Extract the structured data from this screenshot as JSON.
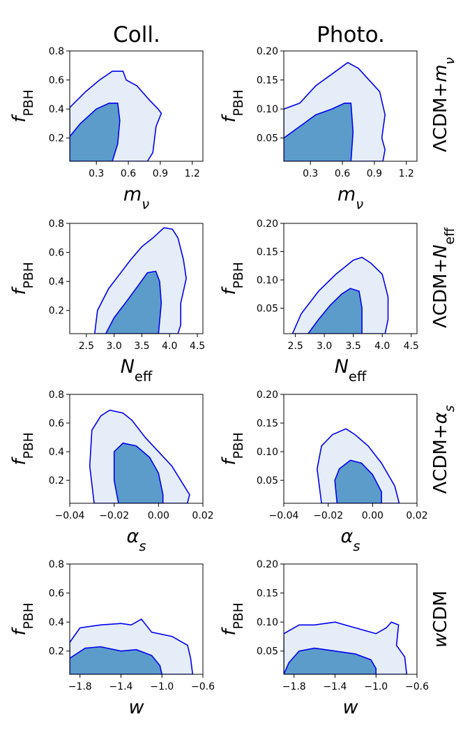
{
  "figure": {
    "column_titles": [
      "Coll.",
      "Photo."
    ],
    "row_titles": [
      "ΛCDM+mν",
      "ΛCDM+Neff",
      "ΛCDM+αs",
      "wCDM"
    ],
    "ylabel": "fPBH",
    "contour_colors": {
      "inner_68": "#5b9ccb",
      "outer_95": "#e5edf8",
      "line": "#0000ee"
    }
  },
  "chart_data": [
    {
      "type": "contour",
      "id": "coll-mnu",
      "column": "Coll.",
      "row": "ΛCDM+mν",
      "xlabel": "mν",
      "ylabel": "fPBH",
      "xlim": [
        0.05,
        1.3
      ],
      "ylim": [
        0.04,
        0.8
      ],
      "xticks": [
        0.3,
        0.6,
        0.9,
        1.2
      ],
      "xtick_labels": [
        "0.3",
        "0.6",
        "0.9",
        "1.2"
      ],
      "yticks": [
        0.2,
        0.4,
        0.6,
        0.8
      ],
      "ytick_labels": [
        "0.2",
        "0.4",
        "0.6",
        "0.8"
      ],
      "contour_95": [
        [
          0.05,
          0.04
        ],
        [
          0.05,
          0.41
        ],
        [
          0.2,
          0.52
        ],
        [
          0.33,
          0.6
        ],
        [
          0.45,
          0.66
        ],
        [
          0.55,
          0.66
        ],
        [
          0.58,
          0.6
        ],
        [
          0.68,
          0.56
        ],
        [
          0.8,
          0.46
        ],
        [
          0.88,
          0.4
        ],
        [
          0.91,
          0.37
        ],
        [
          0.86,
          0.28
        ],
        [
          0.83,
          0.1
        ],
        [
          0.78,
          0.04
        ]
      ],
      "contour_68": [
        [
          0.05,
          0.04
        ],
        [
          0.05,
          0.21
        ],
        [
          0.15,
          0.3
        ],
        [
          0.3,
          0.4
        ],
        [
          0.42,
          0.44
        ],
        [
          0.5,
          0.44
        ],
        [
          0.52,
          0.32
        ],
        [
          0.5,
          0.16
        ],
        [
          0.45,
          0.04
        ]
      ]
    },
    {
      "type": "contour",
      "id": "photo-mnu",
      "column": "Photo.",
      "row": "ΛCDM+mν",
      "xlabel": "mν",
      "ylabel": "fPBH",
      "xlim": [
        0.05,
        1.3
      ],
      "ylim": [
        0.01,
        0.2
      ],
      "xticks": [
        0.3,
        0.6,
        0.9,
        1.2
      ],
      "xtick_labels": [
        "0.3",
        "0.6",
        "0.9",
        "1.2"
      ],
      "yticks": [
        0.05,
        0.1,
        0.15,
        0.2
      ],
      "ytick_labels": [
        "0.05",
        "0.10",
        "0.15",
        "0.20"
      ],
      "contour_95": [
        [
          0.05,
          0.01
        ],
        [
          0.05,
          0.1
        ],
        [
          0.2,
          0.11
        ],
        [
          0.35,
          0.14
        ],
        [
          0.5,
          0.16
        ],
        [
          0.65,
          0.18
        ],
        [
          0.75,
          0.17
        ],
        [
          0.85,
          0.15
        ],
        [
          0.95,
          0.13
        ],
        [
          1.0,
          0.09
        ],
        [
          0.97,
          0.05
        ],
        [
          1.0,
          0.03
        ],
        [
          0.98,
          0.01
        ]
      ],
      "contour_68": [
        [
          0.05,
          0.01
        ],
        [
          0.05,
          0.05
        ],
        [
          0.2,
          0.07
        ],
        [
          0.35,
          0.09
        ],
        [
          0.5,
          0.1
        ],
        [
          0.62,
          0.11
        ],
        [
          0.68,
          0.11
        ],
        [
          0.7,
          0.06
        ],
        [
          0.68,
          0.01
        ]
      ]
    },
    {
      "type": "contour",
      "id": "coll-neff",
      "column": "Coll.",
      "row": "ΛCDM+Neff",
      "xlabel": "Neff",
      "ylabel": "fPBH",
      "xlim": [
        2.2,
        4.6
      ],
      "ylim": [
        0.04,
        0.8
      ],
      "xticks": [
        2.5,
        3.0,
        3.5,
        4.0,
        4.5
      ],
      "xtick_labels": [
        "2.5",
        "3.0",
        "3.5",
        "4.0",
        "4.5"
      ],
      "yticks": [
        0.2,
        0.4,
        0.6,
        0.8
      ],
      "ytick_labels": [
        "0.2",
        "0.4",
        "0.6",
        "0.8"
      ],
      "contour_95": [
        [
          2.65,
          0.04
        ],
        [
          2.7,
          0.2
        ],
        [
          2.9,
          0.35
        ],
        [
          3.1,
          0.45
        ],
        [
          3.3,
          0.55
        ],
        [
          3.5,
          0.64
        ],
        [
          3.7,
          0.7
        ],
        [
          3.9,
          0.77
        ],
        [
          4.05,
          0.76
        ],
        [
          4.15,
          0.7
        ],
        [
          4.25,
          0.55
        ],
        [
          4.3,
          0.42
        ],
        [
          4.2,
          0.25
        ],
        [
          4.2,
          0.1
        ],
        [
          4.15,
          0.04
        ]
      ],
      "contour_68": [
        [
          2.85,
          0.04
        ],
        [
          3.0,
          0.15
        ],
        [
          3.2,
          0.25
        ],
        [
          3.45,
          0.38
        ],
        [
          3.6,
          0.46
        ],
        [
          3.75,
          0.47
        ],
        [
          3.82,
          0.4
        ],
        [
          3.85,
          0.25
        ],
        [
          3.8,
          0.04
        ]
      ]
    },
    {
      "type": "contour",
      "id": "photo-neff",
      "column": "Photo.",
      "row": "ΛCDM+Neff",
      "xlabel": "Neff",
      "ylabel": "fPBH",
      "xlim": [
        2.3,
        4.6
      ],
      "ylim": [
        0.005,
        0.2
      ],
      "xticks": [
        2.5,
        3.0,
        3.5,
        4.0,
        4.5
      ],
      "xtick_labels": [
        "2.5",
        "3.0",
        "3.5",
        "4.0",
        "4.5"
      ],
      "yticks": [
        0.05,
        0.1,
        0.15,
        0.2
      ],
      "ytick_labels": [
        "0.05",
        "0.10",
        "0.15",
        "0.20"
      ],
      "contour_95": [
        [
          2.45,
          0.005
        ],
        [
          2.6,
          0.04
        ],
        [
          2.9,
          0.08
        ],
        [
          3.2,
          0.11
        ],
        [
          3.5,
          0.135
        ],
        [
          3.65,
          0.14
        ],
        [
          3.8,
          0.13
        ],
        [
          4.0,
          0.11
        ],
        [
          4.1,
          0.07
        ],
        [
          4.1,
          0.03
        ],
        [
          4.05,
          0.005
        ]
      ],
      "contour_68": [
        [
          2.72,
          0.005
        ],
        [
          2.9,
          0.03
        ],
        [
          3.1,
          0.055
        ],
        [
          3.3,
          0.075
        ],
        [
          3.45,
          0.085
        ],
        [
          3.6,
          0.08
        ],
        [
          3.65,
          0.05
        ],
        [
          3.65,
          0.005
        ]
      ]
    },
    {
      "type": "contour",
      "id": "coll-alphas",
      "column": "Coll.",
      "row": "ΛCDM+αs",
      "xlabel": "αs",
      "ylabel": "fPBH",
      "xlim": [
        -0.04,
        0.02
      ],
      "ylim": [
        0.04,
        0.8
      ],
      "xticks": [
        -0.04,
        -0.02,
        0.0,
        0.02
      ],
      "xtick_labels": [
        "−0.04",
        "−0.02",
        "0.00",
        "0.02"
      ],
      "yticks": [
        0.2,
        0.4,
        0.6,
        0.8
      ],
      "ytick_labels": [
        "0.2",
        "0.4",
        "0.6",
        "0.8"
      ],
      "contour_95": [
        [
          -0.029,
          0.04
        ],
        [
          -0.031,
          0.3
        ],
        [
          -0.03,
          0.55
        ],
        [
          -0.026,
          0.65
        ],
        [
          -0.022,
          0.69
        ],
        [
          -0.016,
          0.67
        ],
        [
          -0.012,
          0.62
        ],
        [
          -0.006,
          0.5
        ],
        [
          0.0,
          0.4
        ],
        [
          0.006,
          0.3
        ],
        [
          0.01,
          0.2
        ],
        [
          0.014,
          0.1
        ],
        [
          0.013,
          0.04
        ]
      ],
      "contour_68": [
        [
          -0.018,
          0.04
        ],
        [
          -0.02,
          0.2
        ],
        [
          -0.02,
          0.4
        ],
        [
          -0.016,
          0.46
        ],
        [
          -0.01,
          0.44
        ],
        [
          -0.004,
          0.36
        ],
        [
          0.0,
          0.25
        ],
        [
          0.002,
          0.1
        ],
        [
          0.002,
          0.04
        ]
      ]
    },
    {
      "type": "contour",
      "id": "photo-alphas",
      "column": "Photo.",
      "row": "ΛCDM+αs",
      "xlabel": "αs",
      "ylabel": "fPBH",
      "xlim": [
        -0.04,
        0.02
      ],
      "ylim": [
        0.01,
        0.2
      ],
      "xticks": [
        -0.04,
        -0.02,
        0.0,
        0.02
      ],
      "xtick_labels": [
        "−0.04",
        "−0.02",
        "0.00",
        "0.02"
      ],
      "yticks": [
        0.05,
        0.1,
        0.15,
        0.2
      ],
      "ytick_labels": [
        "0.05",
        "0.10",
        "0.15",
        "0.20"
      ],
      "contour_95": [
        [
          -0.023,
          0.01
        ],
        [
          -0.025,
          0.07
        ],
        [
          -0.023,
          0.11
        ],
        [
          -0.018,
          0.13
        ],
        [
          -0.012,
          0.14
        ],
        [
          -0.008,
          0.13
        ],
        [
          -0.002,
          0.11
        ],
        [
          0.004,
          0.08
        ],
        [
          0.01,
          0.04
        ],
        [
          0.012,
          0.01
        ]
      ],
      "contour_68": [
        [
          -0.016,
          0.01
        ],
        [
          -0.017,
          0.05
        ],
        [
          -0.015,
          0.07
        ],
        [
          -0.01,
          0.085
        ],
        [
          -0.005,
          0.08
        ],
        [
          0.0,
          0.06
        ],
        [
          0.004,
          0.03
        ],
        [
          0.004,
          0.01
        ]
      ]
    },
    {
      "type": "contour",
      "id": "coll-w",
      "column": "Coll.",
      "row": "wCDM",
      "xlabel": "w",
      "ylabel": "fPBH",
      "xlim": [
        -1.9,
        -0.6
      ],
      "ylim": [
        0.04,
        0.8
      ],
      "xticks": [
        -1.8,
        -1.4,
        -1.0,
        -0.6
      ],
      "xtick_labels": [
        "−1.8",
        "−1.4",
        "−1.0",
        "−0.6"
      ],
      "yticks": [
        0.2,
        0.4,
        0.6,
        0.8
      ],
      "ytick_labels": [
        "0.2",
        "0.4",
        "0.6",
        "0.8"
      ],
      "contour_95": [
        [
          -1.9,
          0.04
        ],
        [
          -1.9,
          0.26
        ],
        [
          -1.8,
          0.36
        ],
        [
          -1.6,
          0.38
        ],
        [
          -1.4,
          0.39
        ],
        [
          -1.3,
          0.38
        ],
        [
          -1.2,
          0.42
        ],
        [
          -1.1,
          0.33
        ],
        [
          -0.9,
          0.3
        ],
        [
          -0.75,
          0.24
        ],
        [
          -0.72,
          0.15
        ],
        [
          -0.7,
          0.04
        ]
      ],
      "contour_68": [
        [
          -1.9,
          0.04
        ],
        [
          -1.9,
          0.15
        ],
        [
          -1.75,
          0.22
        ],
        [
          -1.6,
          0.23
        ],
        [
          -1.4,
          0.2
        ],
        [
          -1.25,
          0.21
        ],
        [
          -1.1,
          0.17
        ],
        [
          -1.02,
          0.1
        ],
        [
          -1.0,
          0.04
        ]
      ]
    },
    {
      "type": "contour",
      "id": "photo-w",
      "column": "Photo.",
      "row": "wCDM",
      "xlabel": "w",
      "ylabel": "fPBH",
      "xlim": [
        -1.9,
        -0.6
      ],
      "ylim": [
        0.01,
        0.2
      ],
      "xticks": [
        -1.8,
        -1.4,
        -1.0,
        -0.6
      ],
      "xtick_labels": [
        "−1.8",
        "−1.4",
        "−1.0",
        "−0.6"
      ],
      "yticks": [
        0.05,
        0.1,
        0.15,
        0.2
      ],
      "ytick_labels": [
        "0.05",
        "0.10",
        "0.15",
        "0.20"
      ],
      "contour_95": [
        [
          -1.9,
          0.01
        ],
        [
          -1.9,
          0.08
        ],
        [
          -1.75,
          0.095
        ],
        [
          -1.6,
          0.095
        ],
        [
          -1.4,
          0.1
        ],
        [
          -1.2,
          0.09
        ],
        [
          -1.0,
          0.08
        ],
        [
          -0.9,
          0.09
        ],
        [
          -0.85,
          0.1
        ],
        [
          -0.78,
          0.095
        ],
        [
          -0.8,
          0.06
        ],
        [
          -0.72,
          0.04
        ],
        [
          -0.7,
          0.01
        ]
      ],
      "contour_68": [
        [
          -1.9,
          0.01
        ],
        [
          -1.85,
          0.03
        ],
        [
          -1.75,
          0.05
        ],
        [
          -1.6,
          0.055
        ],
        [
          -1.4,
          0.05
        ],
        [
          -1.2,
          0.045
        ],
        [
          -1.05,
          0.035
        ],
        [
          -1.0,
          0.02
        ],
        [
          -1.0,
          0.01
        ]
      ]
    }
  ]
}
